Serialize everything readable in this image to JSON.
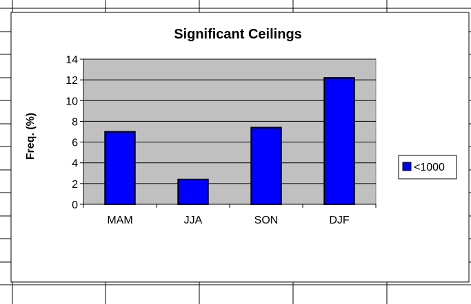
{
  "colors": {
    "plot_bg": "#c0c0c0",
    "bar_fill": "#0000ff",
    "bar_stroke": "#000000",
    "gridline": "#000000",
    "sheet_grid": "#000000"
  },
  "chart_data": {
    "type": "bar",
    "title": "Significant Ceilings",
    "xlabel": "",
    "ylabel": "Freq. (%)",
    "categories": [
      "MAM",
      "JJA",
      "SON",
      "DJF"
    ],
    "series": [
      {
        "name": "<1000",
        "values": [
          7.0,
          2.4,
          7.4,
          12.2
        ]
      }
    ],
    "ylim": [
      0,
      14
    ],
    "yticks": [
      0,
      2,
      4,
      6,
      8,
      10,
      12,
      14
    ],
    "grid": true,
    "legend_position": "right"
  }
}
